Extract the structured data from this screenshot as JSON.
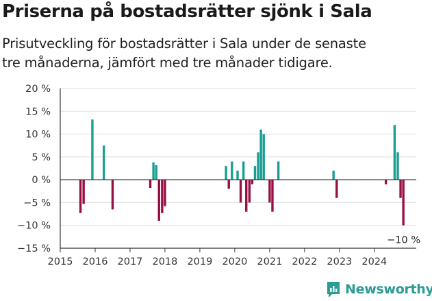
{
  "header": {
    "title": "Priserna på bostadsrätter sjönk i Sala",
    "subtitle_line1": "Prisutveckling för bostadsrätter i Sala under de senaste",
    "subtitle_line2": "tre månaderna, jämfört med tre månader tidigare."
  },
  "brand": {
    "name": "Newsworthy",
    "color": "#2b9b93"
  },
  "colors": {
    "positive": "#199e94",
    "negative": "#980f45",
    "grid": "#dddddd",
    "axis": "#333333"
  },
  "chart_data": {
    "type": "bar",
    "title": "Priserna på bostadsrätter sjönk i Sala",
    "xlabel": "",
    "ylabel": "",
    "ylim": [
      -15,
      20
    ],
    "xlim": [
      2015,
      2025.2
    ],
    "y_ticks": [
      20,
      15,
      10,
      5,
      0,
      -5,
      -10,
      -15
    ],
    "y_tick_labels": [
      "20 %",
      "15 %",
      "10 %",
      "5 %",
      "0 %",
      "−5 %",
      "−10 %",
      "−15 %"
    ],
    "x_ticks": [
      2015,
      2016,
      2017,
      2018,
      2019,
      2020,
      2021,
      2022,
      2023,
      2024
    ],
    "x_tick_labels": [
      "2015",
      "2016",
      "2017",
      "2018",
      "2019",
      "2020",
      "2021",
      "2022",
      "2023",
      "2024"
    ],
    "annotation": "−10 %",
    "series": [
      {
        "name": "Prisutveckling",
        "unit": "%",
        "points": [
          {
            "x": 2015.58,
            "value": -7.3
          },
          {
            "x": 2015.67,
            "value": -5.3
          },
          {
            "x": 2015.92,
            "value": 13.2
          },
          {
            "x": 2016.25,
            "value": 7.5
          },
          {
            "x": 2016.5,
            "value": -6.5
          },
          {
            "x": 2017.58,
            "value": -1.8
          },
          {
            "x": 2017.67,
            "value": 3.8
          },
          {
            "x": 2017.75,
            "value": 3.2
          },
          {
            "x": 2017.83,
            "value": -9.0
          },
          {
            "x": 2017.92,
            "value": -7.3
          },
          {
            "x": 2018.0,
            "value": -5.8
          },
          {
            "x": 2019.75,
            "value": 3.0
          },
          {
            "x": 2019.83,
            "value": -2.0
          },
          {
            "x": 2019.92,
            "value": 4.0
          },
          {
            "x": 2020.08,
            "value": 2.0
          },
          {
            "x": 2020.17,
            "value": -5.0
          },
          {
            "x": 2020.25,
            "value": 4.0
          },
          {
            "x": 2020.33,
            "value": -7.0
          },
          {
            "x": 2020.42,
            "value": -5.0
          },
          {
            "x": 2020.5,
            "value": -1.0
          },
          {
            "x": 2020.58,
            "value": 3.0
          },
          {
            "x": 2020.67,
            "value": 6.0
          },
          {
            "x": 2020.75,
            "value": 11.0
          },
          {
            "x": 2020.83,
            "value": 10.0
          },
          {
            "x": 2021.0,
            "value": -5.0
          },
          {
            "x": 2021.08,
            "value": -7.0
          },
          {
            "x": 2021.25,
            "value": 4.0
          },
          {
            "x": 2022.83,
            "value": 2.0
          },
          {
            "x": 2022.92,
            "value": -4.0
          },
          {
            "x": 2024.33,
            "value": -1.0
          },
          {
            "x": 2024.58,
            "value": 12.0
          },
          {
            "x": 2024.67,
            "value": 6.0
          },
          {
            "x": 2024.75,
            "value": -4.0
          },
          {
            "x": 2024.83,
            "value": -10.0
          }
        ]
      }
    ]
  }
}
